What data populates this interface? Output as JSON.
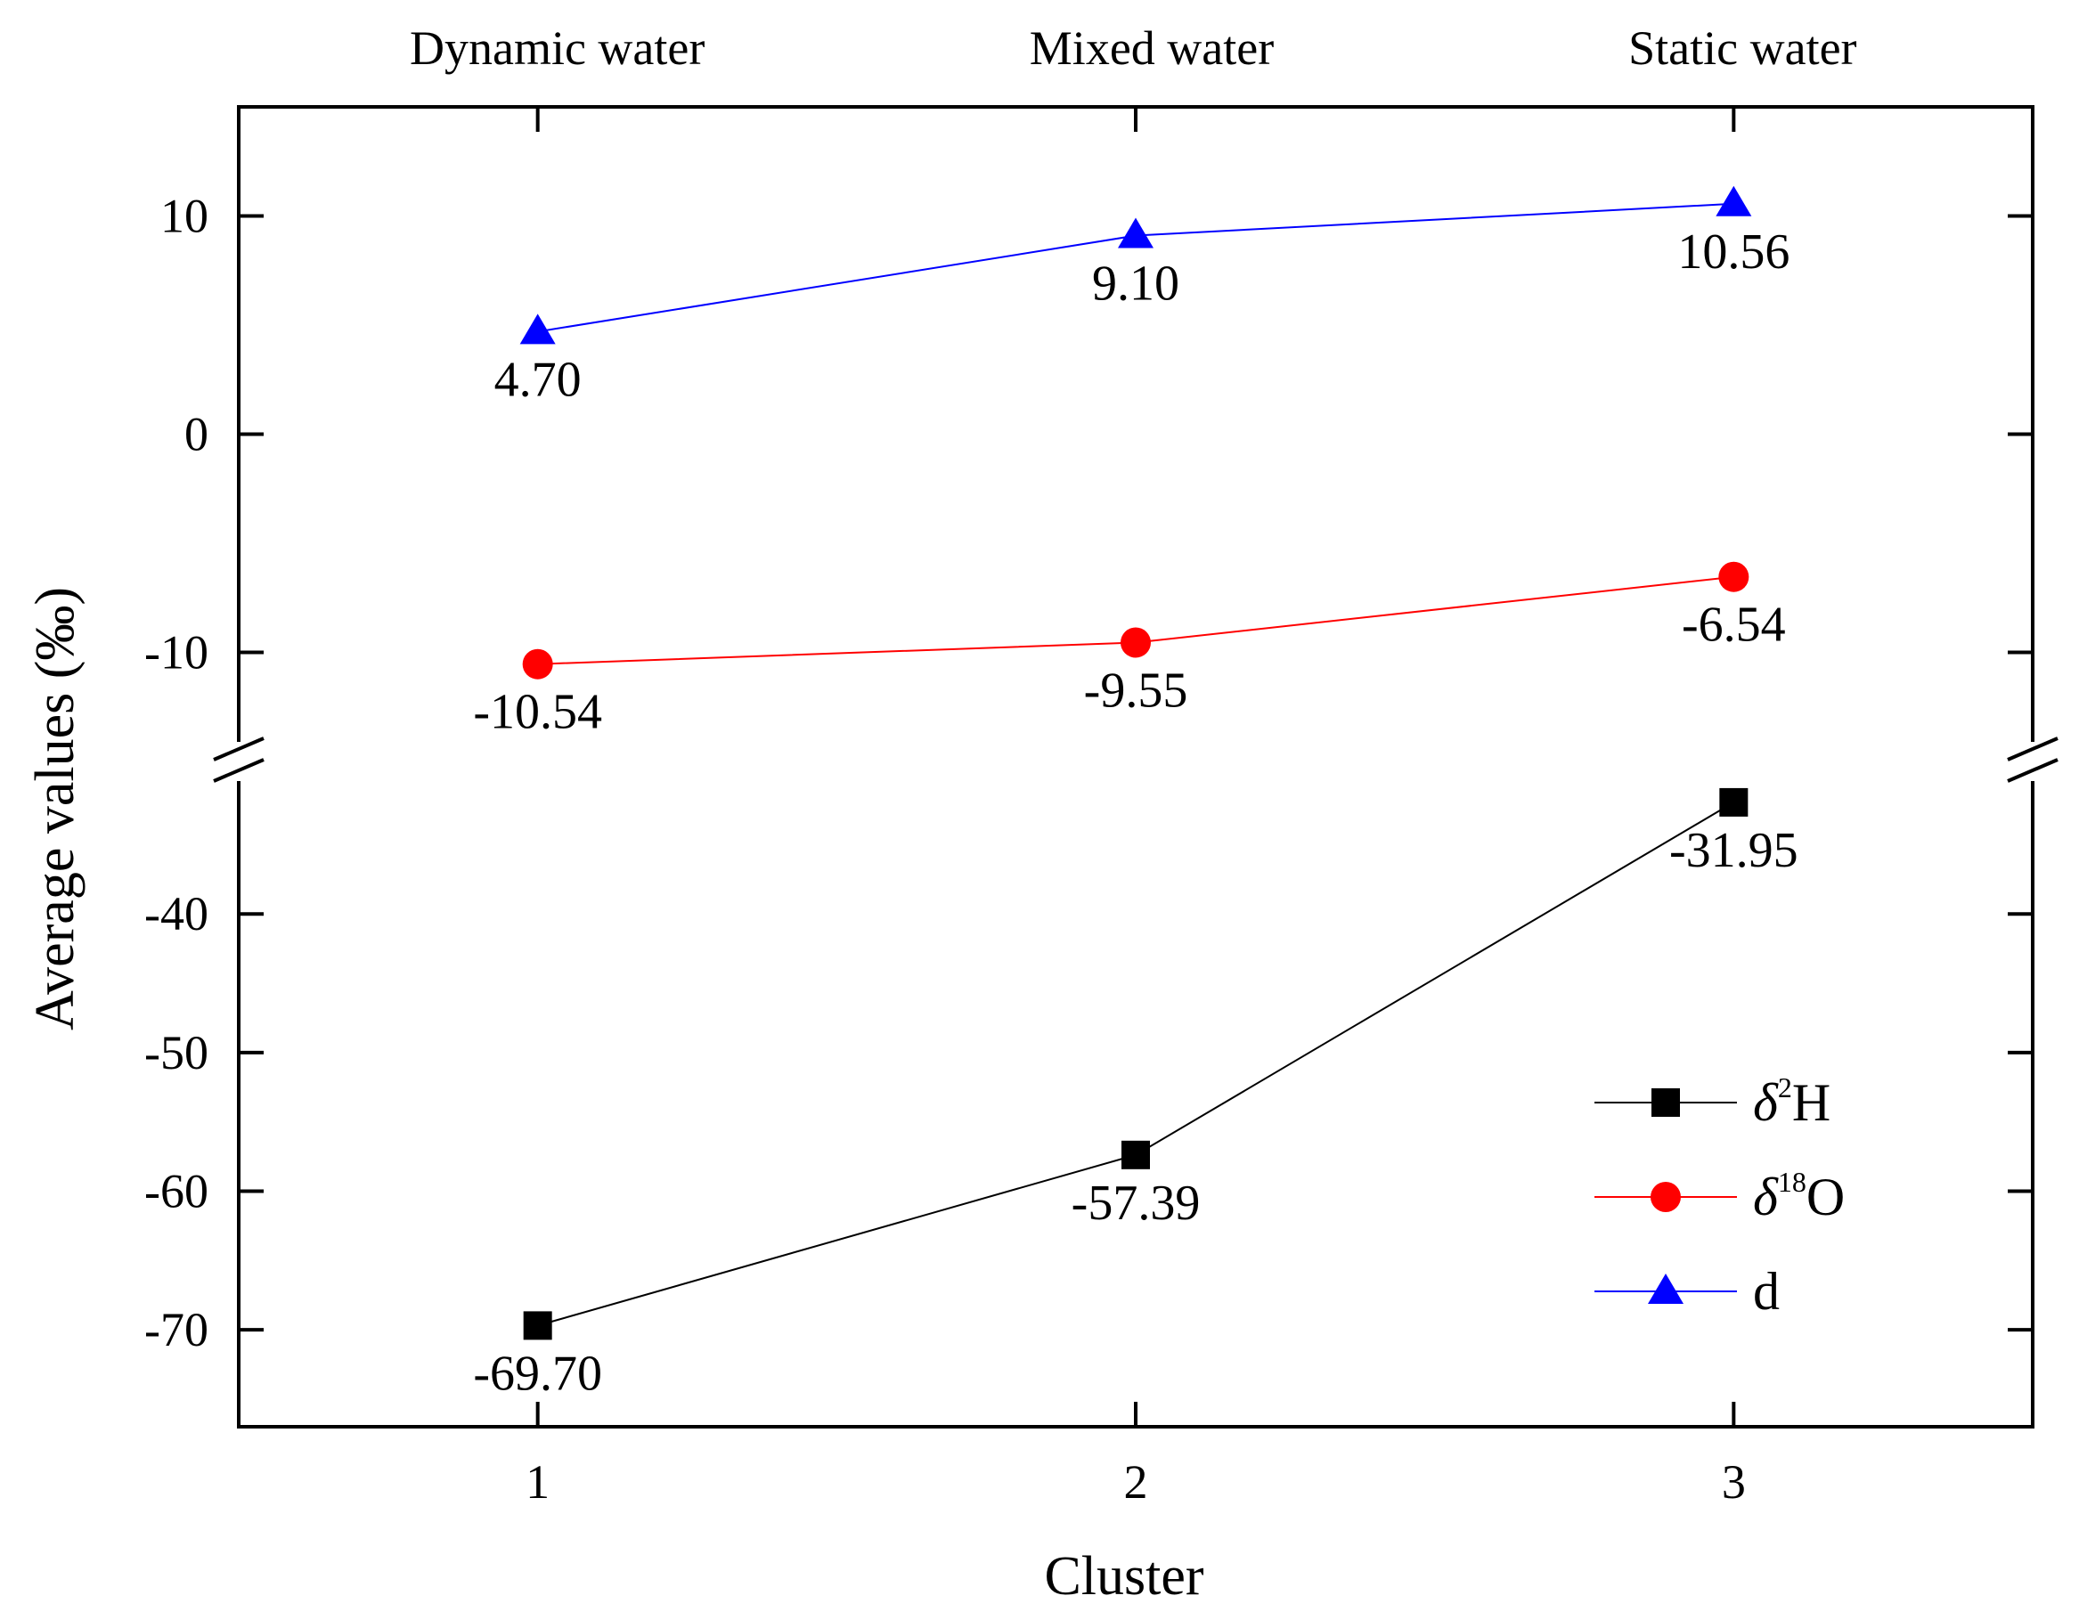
{
  "chart_data": {
    "type": "line",
    "x": [
      1,
      2,
      3
    ],
    "x_tick_labels": [
      "1",
      "2",
      "3"
    ],
    "x_top_labels": [
      "Dynamic water",
      "Mixed water",
      "Static water"
    ],
    "xlabel": "Cluster",
    "ylabel": "Average values (‰)",
    "xlim": [
      0.5,
      3.5
    ],
    "y_break": true,
    "upper_segment": {
      "ylim": [
        -15,
        15
      ],
      "ticks": [
        -10,
        0,
        10
      ]
    },
    "lower_segment": {
      "ylim": [
        -77,
        -29
      ],
      "ticks": [
        -70,
        -60,
        -50,
        -40
      ]
    },
    "series": [
      {
        "name": "δ²H",
        "legend_symbol": "δ",
        "legend_sup": "2",
        "legend_base": "H",
        "segment": "lower",
        "marker": "square",
        "color": "#000000",
        "values": [
          -69.7,
          -57.39,
          -31.95
        ],
        "labels": [
          "-69.70",
          "-57.39",
          "-31.95"
        ]
      },
      {
        "name": "δ¹⁸O",
        "legend_symbol": "δ",
        "legend_sup": "18",
        "legend_base": "O",
        "segment": "upper",
        "marker": "circle",
        "color": "#ff0000",
        "values": [
          -10.54,
          -9.55,
          -6.54
        ],
        "labels": [
          "-10.54",
          "-9.55",
          "-6.54"
        ]
      },
      {
        "name": "d",
        "legend_symbol": "",
        "legend_sup": "",
        "legend_base": "d",
        "segment": "upper",
        "marker": "triangle",
        "color": "#0000ff",
        "values": [
          4.7,
          9.1,
          10.56
        ],
        "labels": [
          "4.70",
          "9.10",
          "10.56"
        ]
      }
    ],
    "legend_position": "bottom-right"
  }
}
